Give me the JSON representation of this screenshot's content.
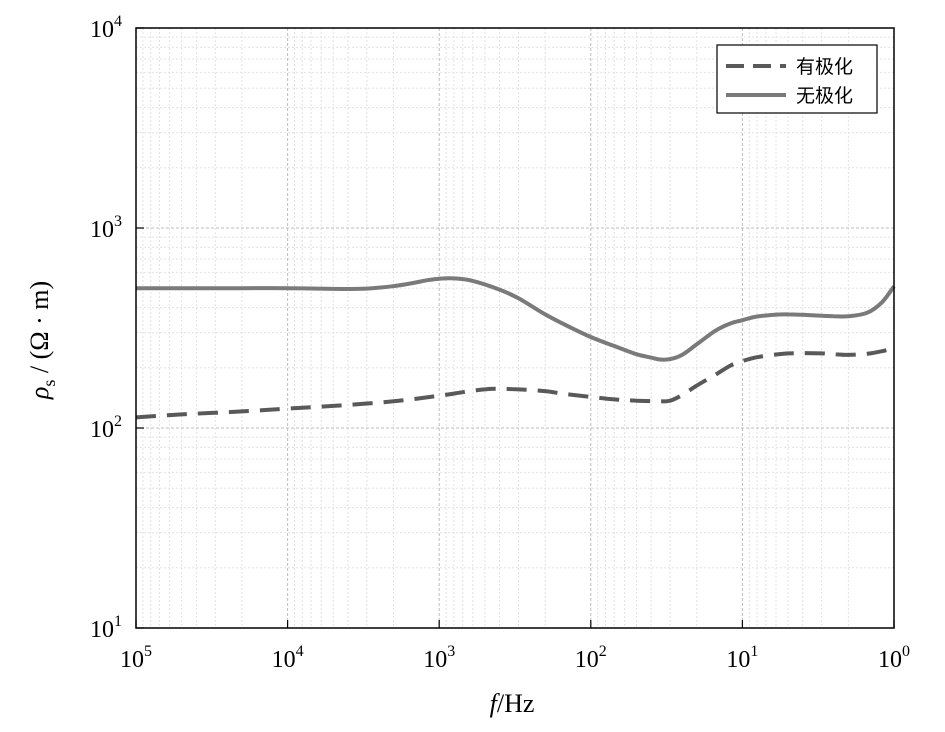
{
  "chart_data": {
    "type": "line",
    "title": "",
    "xlabel": {
      "italic": "f",
      "rest": "/Hz"
    },
    "ylabel": {
      "italic": "ρ",
      "sub": "s",
      "rest": " / (Ω · m)"
    },
    "x_scale": "log",
    "y_scale": "log",
    "x_reversed": true,
    "xlim": [
      100000,
      1
    ],
    "ylim": [
      10,
      10000
    ],
    "x_ticks": [
      {
        "value": 100000,
        "base": "10",
        "exp": "5"
      },
      {
        "value": 10000,
        "base": "10",
        "exp": "4"
      },
      {
        "value": 1000,
        "base": "10",
        "exp": "3"
      },
      {
        "value": 100,
        "base": "10",
        "exp": "2"
      },
      {
        "value": 10,
        "base": "10",
        "exp": "1"
      },
      {
        "value": 1,
        "base": "10",
        "exp": "0"
      }
    ],
    "y_ticks": [
      {
        "value": 10,
        "base": "10",
        "exp": "1"
      },
      {
        "value": 100,
        "base": "10",
        "exp": "2"
      },
      {
        "value": 1000,
        "base": "10",
        "exp": "3"
      },
      {
        "value": 10000,
        "base": "10",
        "exp": "4"
      }
    ],
    "grid": true,
    "legend_position": "top-right",
    "series": [
      {
        "name": "有极化",
        "style": "dashed",
        "color": "#595959",
        "x": [
          100000,
          50000,
          20000,
          10000,
          5000,
          2000,
          1000,
          700,
          500,
          400,
          300,
          200,
          150,
          100,
          70,
          50,
          35,
          30,
          25,
          20,
          15,
          12,
          10,
          8,
          6,
          5,
          4,
          3,
          2.5,
          2,
          1.5,
          1.2,
          1
        ],
        "y": [
          113,
          117,
          121,
          125,
          129,
          136,
          145,
          151,
          156,
          157,
          156,
          153,
          148,
          143,
          139,
          137,
          136,
          137,
          146,
          163,
          185,
          205,
          216,
          226,
          233,
          236,
          237,
          236,
          234,
          232,
          235,
          242,
          251
        ]
      },
      {
        "name": "无极化",
        "style": "solid",
        "color": "#7a7a7a",
        "x": [
          100000,
          50000,
          20000,
          10000,
          5000,
          3000,
          2000,
          1500,
          1200,
          1000,
          800,
          600,
          400,
          300,
          200,
          150,
          100,
          70,
          50,
          40,
          35,
          30,
          25,
          20,
          15,
          12,
          10,
          8,
          6,
          5,
          4,
          3,
          2.5,
          2,
          1.5,
          1.2,
          1
        ],
        "y": [
          500,
          500,
          500,
          500,
          496,
          498,
          512,
          530,
          548,
          558,
          560,
          544,
          492,
          445,
          370,
          330,
          285,
          257,
          234,
          225,
          220,
          221,
          232,
          262,
          307,
          333,
          346,
          361,
          369,
          370,
          368,
          364,
          362,
          362,
          377,
          425,
          511
        ]
      }
    ]
  }
}
